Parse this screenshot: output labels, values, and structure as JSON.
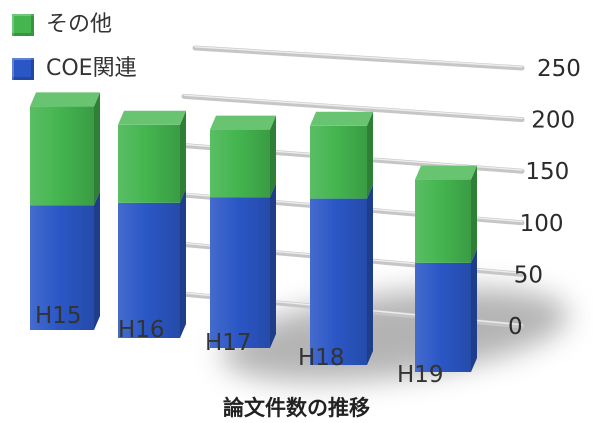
{
  "chart_data": {
    "type": "bar",
    "stacked": true,
    "style": "3d",
    "title": "論文件数の推移",
    "categories": [
      "H15",
      "H16",
      "H17",
      "H18",
      "H19"
    ],
    "series": [
      {
        "name": "COE関連",
        "color": "#2b57c6",
        "values": [
          120,
          130,
          145,
          160,
          105
        ]
      },
      {
        "name": "その他",
        "color": "#44b54f",
        "values": [
          95,
          75,
          65,
          70,
          80
        ]
      }
    ],
    "ylim": [
      0,
      250
    ],
    "yticks": [
      0,
      50,
      100,
      150,
      200,
      250
    ],
    "y_axis_position": "right",
    "grid": true,
    "legend_position": "top-left"
  }
}
